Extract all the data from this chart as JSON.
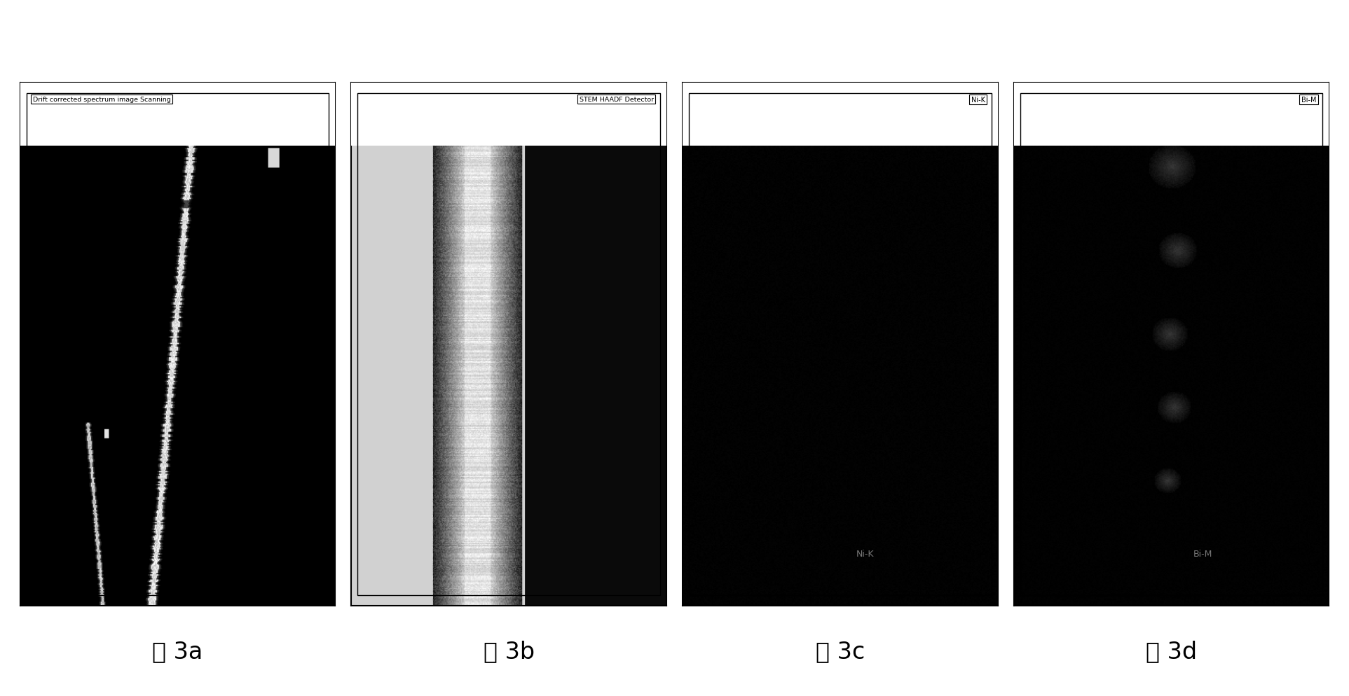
{
  "fig_width": 19.25,
  "fig_height": 9.95,
  "bg_color": "#ffffff",
  "panel_labels": [
    "图 3a",
    "图 3b",
    "图 3c",
    "图 3d"
  ],
  "panel_annotations": [
    "Drift corrected spectrum image Scanning",
    "STEM HAADF Detector",
    "Ni-K",
    "Bi-M"
  ],
  "label_fontsize": 24,
  "annotation_fontsize": 8
}
